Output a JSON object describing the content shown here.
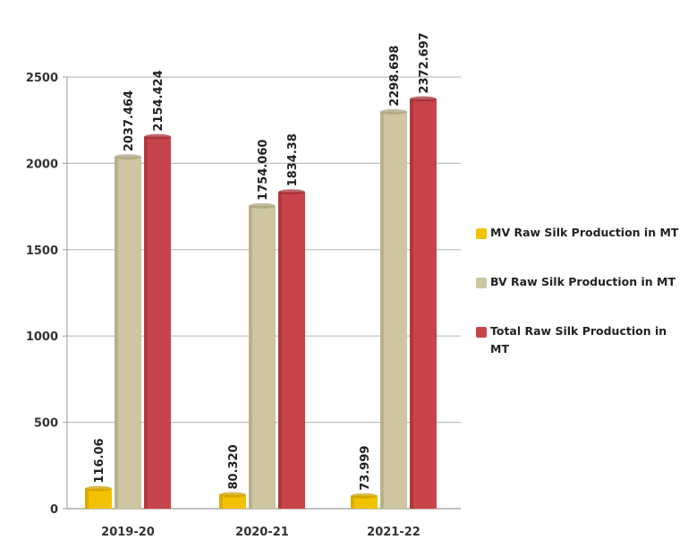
{
  "chart_data": {
    "type": "bar",
    "categories": [
      "2019-20",
      "2020-21",
      "2021-22"
    ],
    "series": [
      {
        "name": "MV Raw Silk Production in MT",
        "values": [
          116.06,
          80.32,
          73.999
        ],
        "labels": [
          "116.06",
          "80.320",
          "73.999"
        ],
        "color": "#f2c200"
      },
      {
        "name": "BV Raw Silk Production in MT",
        "values": [
          2037.464,
          1754.06,
          2298.698
        ],
        "labels": [
          "2037.464",
          "1754.060",
          "2298.698"
        ],
        "color": "#cdc6a0"
      },
      {
        "name": "Total Raw Silk Production in MT",
        "values": [
          2154.424,
          1834.38,
          2372.697
        ],
        "labels": [
          "2154.424",
          "1834.38",
          "2372.697"
        ],
        "color": "#c8444b"
      }
    ],
    "yticks": [
      "0",
      "500",
      "1000",
      "1500",
      "2000",
      "2500"
    ],
    "ylim": [
      0,
      2500
    ],
    "grid": true,
    "legend_position": "right",
    "title": "",
    "xlabel": "",
    "ylabel": ""
  }
}
